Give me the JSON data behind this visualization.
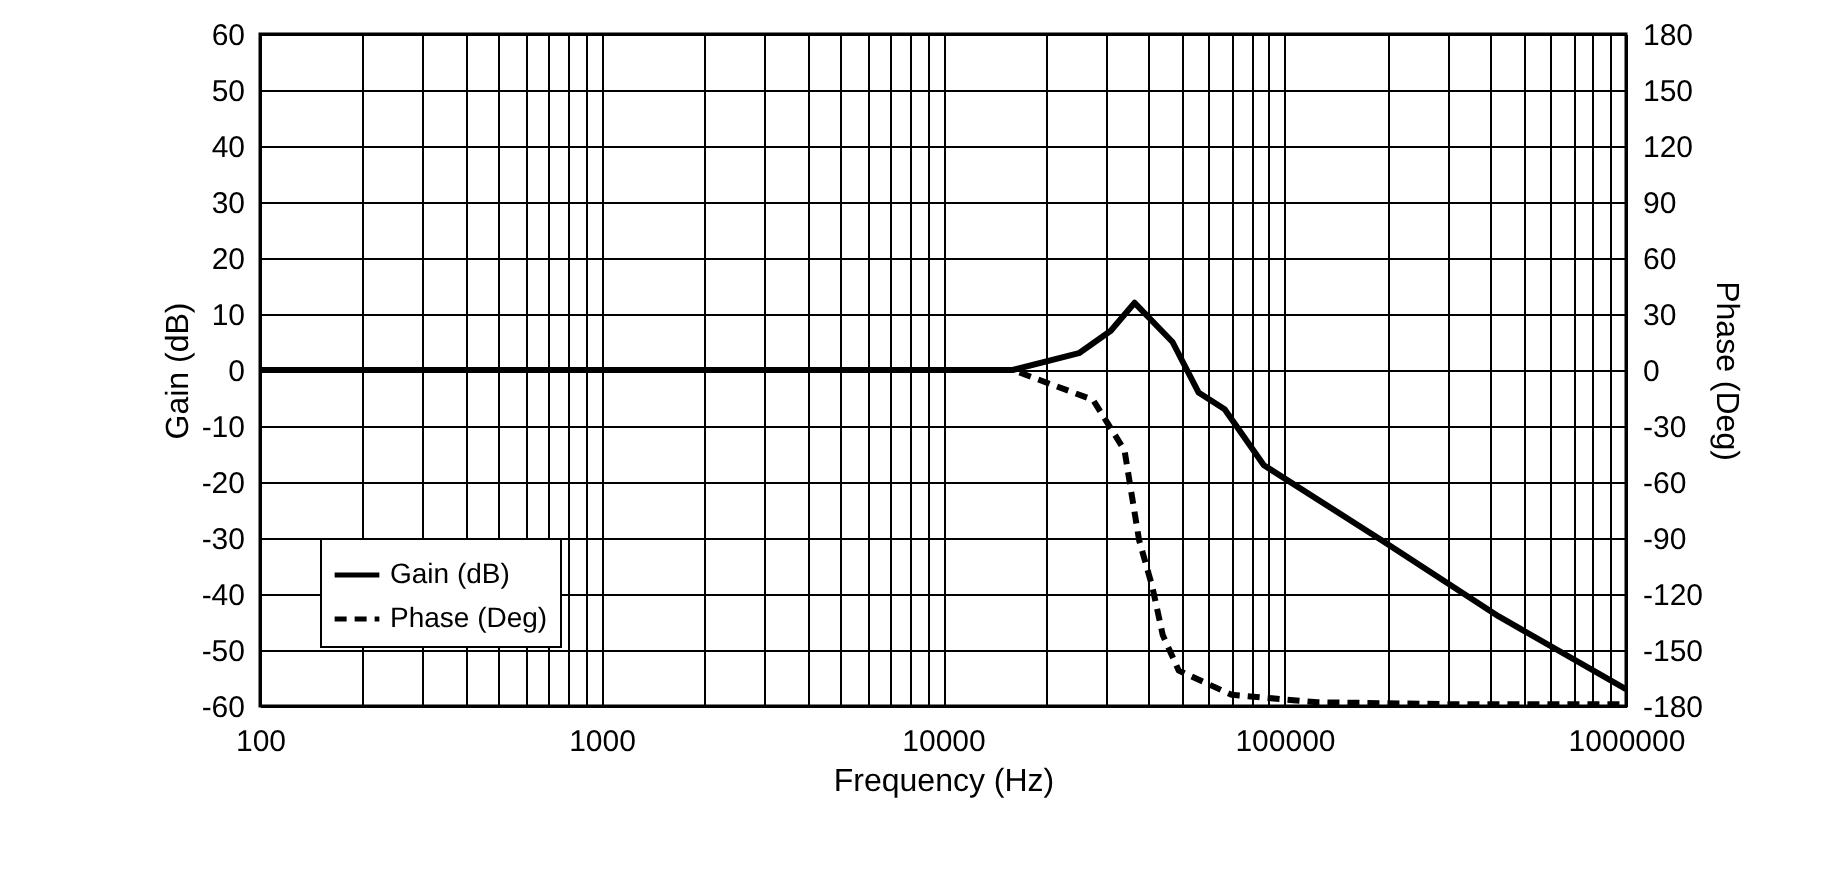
{
  "chart_data": {
    "type": "line",
    "xlabel": "Frequency (Hz)",
    "ylabel": "Gain (dB)",
    "y2label": "Phase (Deg)",
    "log": "x",
    "grid": true,
    "legend": "bottom left",
    "xlim": [
      100,
      1000000
    ],
    "xticks": [
      100,
      {
        "value": 200,
        "label": null
      },
      {
        "value": 300,
        "label": null
      },
      {
        "value": 400,
        "label": null
      },
      {
        "value": 500,
        "label": null
      },
      {
        "value": 600,
        "label": null
      },
      {
        "value": 700,
        "label": null
      },
      {
        "value": 800,
        "label": null
      },
      {
        "value": 900,
        "label": null
      },
      1000,
      {
        "value": 2000,
        "label": null
      },
      {
        "value": 3000,
        "label": null
      },
      {
        "value": 4000,
        "label": null
      },
      {
        "value": 5000,
        "label": null
      },
      {
        "value": 6000,
        "label": null
      },
      {
        "value": 7000,
        "label": null
      },
      {
        "value": 8000,
        "label": null
      },
      {
        "value": 9000,
        "label": null
      },
      10000,
      {
        "value": 20000,
        "label": null
      },
      {
        "value": 30000,
        "label": null
      },
      {
        "value": 40000,
        "label": null
      },
      {
        "value": 50000,
        "label": null
      },
      {
        "value": 60000,
        "label": null
      },
      {
        "value": 70000,
        "label": null
      },
      {
        "value": 80000,
        "label": null
      },
      {
        "value": 90000,
        "label": null
      },
      100000,
      {
        "value": 200000,
        "label": null
      },
      {
        "value": 300000,
        "label": null
      },
      {
        "value": 400000,
        "label": null
      },
      {
        "value": 500000,
        "label": null
      },
      {
        "value": 600000,
        "label": null
      },
      {
        "value": 700000,
        "label": null
      },
      {
        "value": 800000,
        "label": null
      },
      {
        "value": 900000,
        "label": null
      },
      1000000
    ],
    "ylim": [
      -60,
      60
    ],
    "yticks": [
      -60,
      -50,
      -40,
      -30,
      -20,
      -10,
      0,
      10,
      20,
      30,
      40,
      50,
      60
    ],
    "y2lim": [
      -180,
      180
    ],
    "y2ticks": [
      -180,
      -150,
      -120,
      -90,
      -60,
      -30,
      0,
      30,
      60,
      90,
      120,
      150,
      180
    ],
    "series": [
      {
        "name": "Gain (dB)",
        "color": "#000000",
        "line_style": "solid",
        "x": [
          100,
          1000,
          10000,
          16000,
          25000,
          31000,
          36400,
          47000,
          56000,
          66800,
          87000,
          188000,
          424000,
          1000000
        ],
        "values": [
          0,
          0,
          0,
          0,
          3,
          7,
          12,
          5,
          -4,
          -7,
          -17,
          -30,
          -44,
          -57
        ]
      },
      {
        "name": "Phase (Deg)",
        "color": "#000000",
        "line_style": "dashed",
        "axis": "y2",
        "x": [
          100,
          1000,
          10000,
          16000,
          27500,
          34000,
          37500,
          41000,
          44000,
          49000,
          70000,
          125000,
          300000,
          1000000
        ],
        "values": [
          0,
          0,
          0,
          0,
          -16,
          -43,
          -91,
          -116,
          -142,
          -161,
          -174,
          -178,
          -179,
          -179
        ]
      }
    ]
  }
}
